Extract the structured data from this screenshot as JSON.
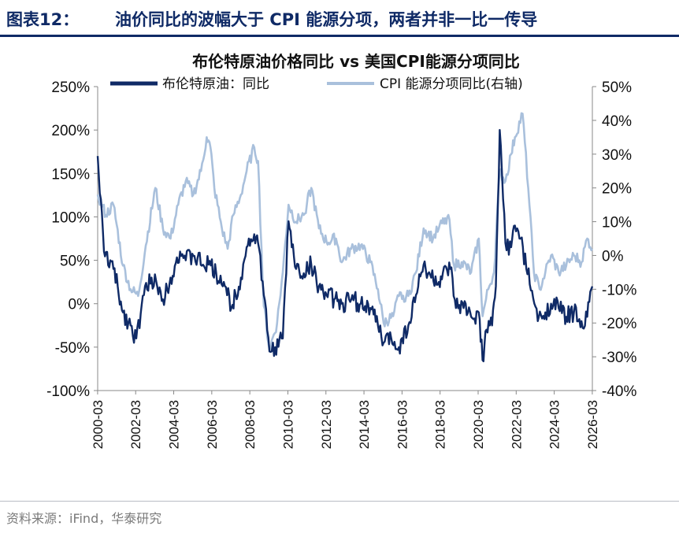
{
  "header": {
    "figure_label": "图表12：",
    "figure_title": "油价同比的波幅大于 CPI 能源分项，两者并非一比一传导"
  },
  "footer": {
    "source": "资料来源：iFind，华泰研究"
  },
  "colors": {
    "brent": "#0f2a66",
    "cpi": "#a9c0dc",
    "axis": "#888888"
  },
  "chart_data": {
    "type": "line",
    "title": "布伦特原油价格同比 vs 美国CPI能源分项同比",
    "x_tick_labels": [
      "2000-03",
      "2002-03",
      "2004-03",
      "2006-03",
      "2008-03",
      "2010-03",
      "2012-03",
      "2014-03",
      "2016-03",
      "2018-03",
      "2020-03",
      "2022-03",
      "2024-03",
      "2026-03"
    ],
    "x_range": [
      2000.17,
      2026.17
    ],
    "left_axis": {
      "min": -100,
      "max": 250,
      "ticks": [
        "250%",
        "200%",
        "150%",
        "100%",
        "50%",
        "0%",
        "-50%",
        "-100%"
      ]
    },
    "right_axis": {
      "min": -40,
      "max": 50,
      "ticks": [
        "50%",
        "40%",
        "30%",
        "20%",
        "10%",
        "0%",
        "-10%",
        "-20%",
        "-30%",
        "-40%"
      ]
    },
    "series": [
      {
        "name": "布伦特原油：同比",
        "axis": "left",
        "x": [
          2000.17,
          2000.5,
          2001.0,
          2001.5,
          2001.9,
          2002.2,
          2002.6,
          2003.0,
          2003.3,
          2003.6,
          2004.0,
          2004.5,
          2004.8,
          2005.2,
          2005.7,
          2006.0,
          2006.4,
          2006.8,
          2007.2,
          2007.7,
          2008.0,
          2008.4,
          2008.6,
          2008.9,
          2009.2,
          2009.5,
          2009.9,
          2010.2,
          2010.6,
          2011.0,
          2011.4,
          2011.8,
          2012.2,
          2012.6,
          2013.0,
          2013.5,
          2014.0,
          2014.5,
          2014.9,
          2015.2,
          2015.6,
          2016.0,
          2016.5,
          2016.9,
          2017.3,
          2017.7,
          2018.1,
          2018.7,
          2019.0,
          2019.4,
          2019.8,
          2020.2,
          2020.4,
          2020.6,
          2020.9,
          2021.1,
          2021.3,
          2021.6,
          2021.9,
          2022.1,
          2022.4,
          2022.7,
          2023.0,
          2023.3,
          2023.7,
          2024.0,
          2024.4,
          2024.8,
          2025.2,
          2025.6,
          2025.9,
          2026.17
        ],
        "values": [
          170,
          60,
          40,
          -10,
          -25,
          -40,
          10,
          30,
          20,
          5,
          30,
          60,
          50,
          55,
          45,
          45,
          35,
          25,
          -5,
          30,
          65,
          80,
          70,
          10,
          -55,
          -50,
          -40,
          95,
          40,
          35,
          45,
          20,
          10,
          5,
          0,
          5,
          0,
          -5,
          -25,
          -45,
          -40,
          -50,
          -25,
          10,
          45,
          30,
          25,
          40,
          -5,
          -5,
          -15,
          -10,
          -65,
          -30,
          -25,
          20,
          200,
          70,
          65,
          90,
          75,
          40,
          15,
          -20,
          -10,
          0,
          -5,
          -15,
          -10,
          -20,
          -15,
          20
        ]
      },
      {
        "name": "CPI 能源分项同比(右轴)",
        "axis": "right",
        "x": [
          2000.17,
          2000.6,
          2001.0,
          2001.5,
          2001.9,
          2002.3,
          2002.7,
          2003.2,
          2003.6,
          2004.0,
          2004.4,
          2004.8,
          2005.2,
          2005.6,
          2005.9,
          2006.1,
          2006.3,
          2006.7,
          2007.0,
          2007.3,
          2007.7,
          2008.0,
          2008.4,
          2008.6,
          2008.9,
          2009.2,
          2009.6,
          2009.9,
          2010.2,
          2010.6,
          2011.0,
          2011.4,
          2011.8,
          2012.2,
          2012.7,
          2013.0,
          2013.5,
          2014.0,
          2014.5,
          2014.9,
          2015.2,
          2015.7,
          2016.0,
          2016.5,
          2016.9,
          2017.3,
          2017.8,
          2018.1,
          2018.6,
          2018.9,
          2019.3,
          2019.8,
          2020.2,
          2020.4,
          2020.7,
          2021.0,
          2021.3,
          2021.6,
          2021.9,
          2022.1,
          2022.5,
          2022.8,
          2023.1,
          2023.4,
          2023.7,
          2024.0,
          2024.4,
          2024.8,
          2025.2,
          2025.6,
          2025.9,
          2026.17
        ],
        "values": [
          18,
          12,
          15,
          -3,
          -10,
          -12,
          3,
          20,
          8,
          5,
          15,
          22,
          18,
          25,
          35,
          32,
          20,
          8,
          2,
          12,
          18,
          25,
          32,
          28,
          -15,
          -28,
          -20,
          -5,
          15,
          10,
          12,
          20,
          8,
          4,
          5,
          -2,
          2,
          3,
          -2,
          -10,
          -20,
          -18,
          -12,
          -12,
          -5,
          8,
          5,
          8,
          12,
          -3,
          -2,
          -5,
          5,
          -18,
          -10,
          -5,
          25,
          22,
          30,
          35,
          42,
          20,
          -5,
          -10,
          -5,
          0,
          -5,
          -3,
          0,
          -2,
          5,
          2
        ]
      }
    ]
  }
}
